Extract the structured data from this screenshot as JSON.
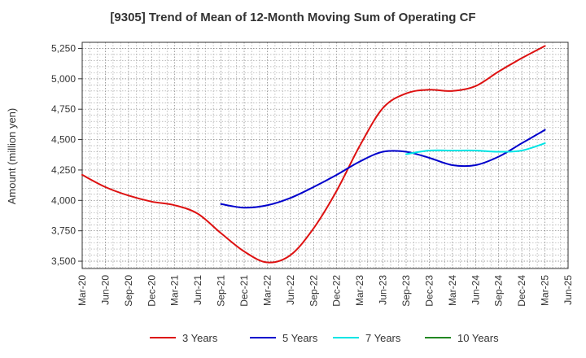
{
  "chart_data": {
    "type": "line",
    "title": "[9305]  Trend of Mean of 12-Month Moving Sum of Operating CF",
    "xlabel": "",
    "ylabel": "Amount (million yen)",
    "ylim": [
      3440,
      5300
    ],
    "yticks": [
      3500,
      3750,
      4000,
      4250,
      4500,
      4750,
      5000,
      5250
    ],
    "ytick_labels": [
      "3,500",
      "3,750",
      "4,000",
      "4,250",
      "4,500",
      "4,750",
      "5,000",
      "5,250"
    ],
    "x_tick_labels": [
      "Mar-20",
      "Jun-20",
      "Sep-20",
      "Dec-20",
      "Mar-21",
      "Jun-21",
      "Sep-21",
      "Dec-21",
      "Mar-22",
      "Jun-22",
      "Sep-22",
      "Dec-22",
      "Mar-23",
      "Jun-23",
      "Sep-23",
      "Dec-23",
      "Mar-24",
      "Jun-24",
      "Sep-24",
      "Dec-24",
      "Mar-25",
      "Jun-25"
    ],
    "grid": true,
    "legend_position": "bottom",
    "series": [
      {
        "name": "3 Years",
        "color": "#dd1111",
        "points": [
          [
            0,
            4210
          ],
          [
            1,
            4110
          ],
          [
            2,
            4040
          ],
          [
            3,
            3990
          ],
          [
            4,
            3960
          ],
          [
            5,
            3890
          ],
          [
            6,
            3730
          ],
          [
            7,
            3580
          ],
          [
            8,
            3490
          ],
          [
            9,
            3550
          ],
          [
            10,
            3770
          ],
          [
            11,
            4080
          ],
          [
            12,
            4450
          ],
          [
            13,
            4760
          ],
          [
            14,
            4880
          ],
          [
            15,
            4910
          ],
          [
            16,
            4900
          ],
          [
            17,
            4940
          ],
          [
            18,
            5060
          ],
          [
            19,
            5170
          ],
          [
            20,
            5270
          ]
        ]
      },
      {
        "name": "5 Years",
        "color": "#0000cc",
        "points": [
          [
            6,
            3970
          ],
          [
            7,
            3940
          ],
          [
            8,
            3960
          ],
          [
            9,
            4020
          ],
          [
            10,
            4110
          ],
          [
            11,
            4210
          ],
          [
            12,
            4320
          ],
          [
            13,
            4400
          ],
          [
            14,
            4400
          ],
          [
            15,
            4350
          ],
          [
            16,
            4290
          ],
          [
            17,
            4290
          ],
          [
            18,
            4360
          ],
          [
            19,
            4470
          ],
          [
            20,
            4580
          ]
        ]
      },
      {
        "name": "7 Years",
        "color": "#00e5e5",
        "points": [
          [
            14,
            4380
          ],
          [
            15,
            4410
          ],
          [
            16,
            4410
          ],
          [
            17,
            4410
          ],
          [
            18,
            4400
          ],
          [
            19,
            4410
          ],
          [
            20,
            4470
          ]
        ]
      },
      {
        "name": "10 Years",
        "color": "#228822",
        "points": []
      }
    ]
  }
}
